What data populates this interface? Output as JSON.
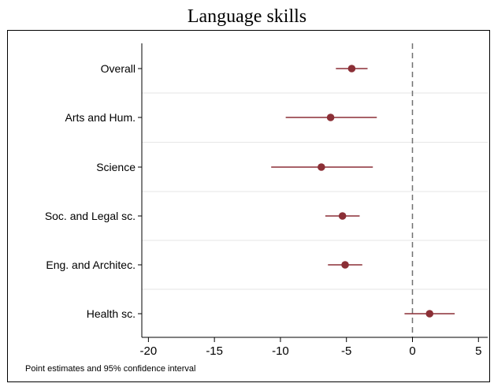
{
  "chart_data": {
    "type": "scatter",
    "title": "Language skills",
    "note": "Point estimates and 95% confidence interval",
    "categories": [
      "Overall",
      "Arts and Hum.",
      "Science",
      "Soc. and Legal sc.",
      "Eng. and Architec.",
      "Health sc."
    ],
    "estimates": [
      -4.6,
      -6.2,
      -6.9,
      -5.3,
      -5.1,
      1.3
    ],
    "ci_low": [
      -5.8,
      -9.6,
      -10.7,
      -6.6,
      -6.4,
      -0.6
    ],
    "ci_high": [
      -3.4,
      -2.7,
      -3.0,
      -4.0,
      -3.8,
      3.2
    ],
    "xticks": [
      "-20",
      "-15",
      "-10",
      "-5",
      "0",
      "5"
    ],
    "xlim": [
      -20.5,
      5.7
    ],
    "reference_line_x": 0,
    "grid": "horizontal separators between categories",
    "colors": {
      "point": "#8b2f36",
      "ci": "#8b2f36",
      "reference": "#707070",
      "grid": "#e6e6e6",
      "axis": "#000000"
    }
  }
}
